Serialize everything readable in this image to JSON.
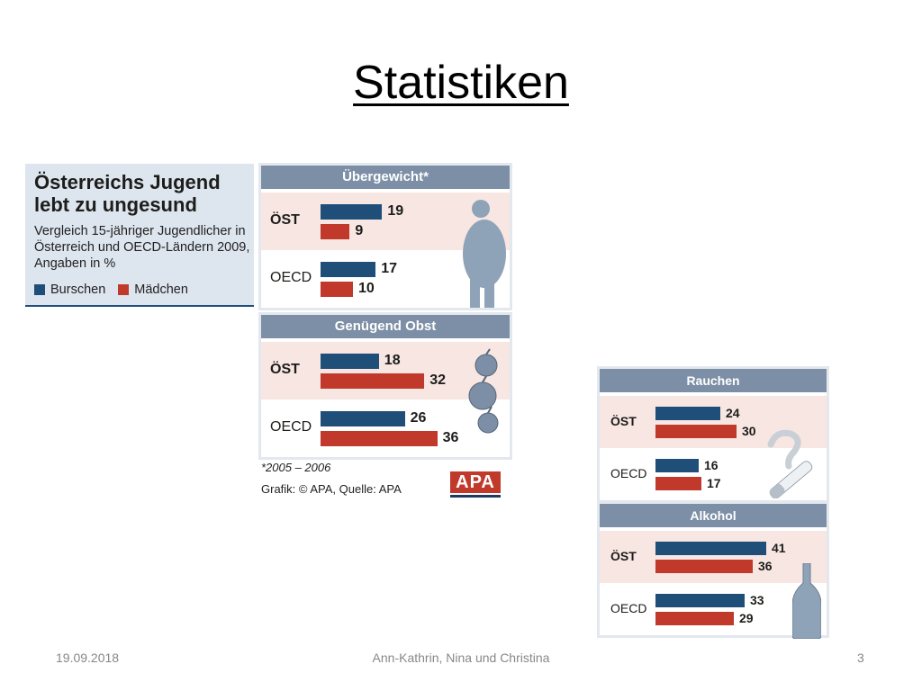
{
  "slide": {
    "title": "Statistiken",
    "footer": {
      "date": "19.09.2018",
      "authors": "Ann-Kathrin, Nina und Christina",
      "page": "3"
    }
  },
  "intro": {
    "title": "Österreichs Jugend lebt zu ungesund",
    "subtitle": "Vergleich 15-jähriger Jugendlicher in Österreich und OECD-Ländern 2009, Angaben in %",
    "legend": [
      {
        "label": "Burschen",
        "color": "#1f4e79"
      },
      {
        "label": "Mädchen",
        "color": "#c0392b"
      }
    ]
  },
  "notes": {
    "footnote": "*2005 – 2006",
    "credit": "Grafik: © APA, Quelle: APA",
    "logo": "APA"
  },
  "chart_data": [
    {
      "type": "bar",
      "orientation": "horizontal",
      "title": "Übergewicht*",
      "icon": "overweight-person-icon",
      "categories": [
        "ÖST",
        "OECD"
      ],
      "series": [
        {
          "name": "Burschen",
          "values": [
            19,
            17
          ]
        },
        {
          "name": "Mädchen",
          "values": [
            9,
            10
          ]
        }
      ]
    },
    {
      "type": "bar",
      "orientation": "horizontal",
      "title": "Genügend Obst",
      "icon": "apple-icon",
      "categories": [
        "ÖST",
        "OECD"
      ],
      "series": [
        {
          "name": "Burschen",
          "values": [
            18,
            26
          ]
        },
        {
          "name": "Mädchen",
          "values": [
            32,
            36
          ]
        }
      ]
    },
    {
      "type": "bar",
      "orientation": "horizontal",
      "title": "Rauchen",
      "icon": "cigarette-icon",
      "categories": [
        "ÖST",
        "OECD"
      ],
      "series": [
        {
          "name": "Burschen",
          "values": [
            24,
            16
          ]
        },
        {
          "name": "Mädchen",
          "values": [
            30,
            17
          ]
        }
      ]
    },
    {
      "type": "bar",
      "orientation": "horizontal",
      "title": "Alkohol",
      "icon": "bottle-icon",
      "categories": [
        "ÖST",
        "OECD"
      ],
      "series": [
        {
          "name": "Burschen",
          "values": [
            41,
            33
          ]
        },
        {
          "name": "Mädchen",
          "values": [
            36,
            29
          ]
        }
      ]
    }
  ]
}
